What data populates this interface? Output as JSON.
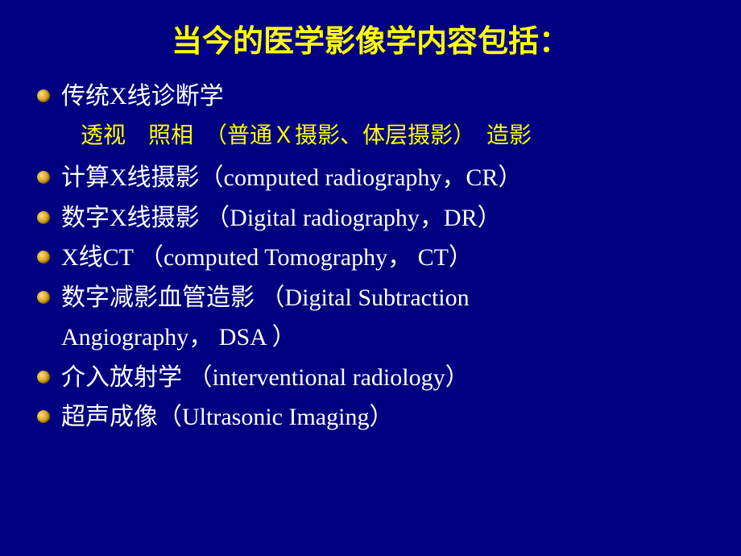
{
  "title": "当今的医学影像学内容包括：",
  "title_color": "#ffff00",
  "text_color": "#ffffff",
  "sub_color": "#ffff00",
  "background_color": "#000080",
  "bullet_colors": [
    "#ffe080",
    "#d4a020",
    "#8b6010"
  ],
  "title_fontsize": 38,
  "item_fontsize": 30,
  "sub_fontsize": 28,
  "items": [
    {
      "text": "传统X线诊断学",
      "sub": "透视　照相　（普通Ｘ摄影、体层摄影）　造影"
    },
    {
      "text": "计算X线摄影（computed radiography，CR）"
    },
    {
      "text": "数字X线摄影 （Digital  radiography，DR）"
    },
    {
      "text": "X线CT （computed Tomography， CT）"
    },
    {
      "text": "数字减影血管造影 （Digital Subtraction",
      "continuation": "Angiography， DSA ）"
    },
    {
      "text": "介入放射学 （interventional radiology）"
    },
    {
      "text": "超声成像（Ultrasonic Imaging）"
    }
  ]
}
